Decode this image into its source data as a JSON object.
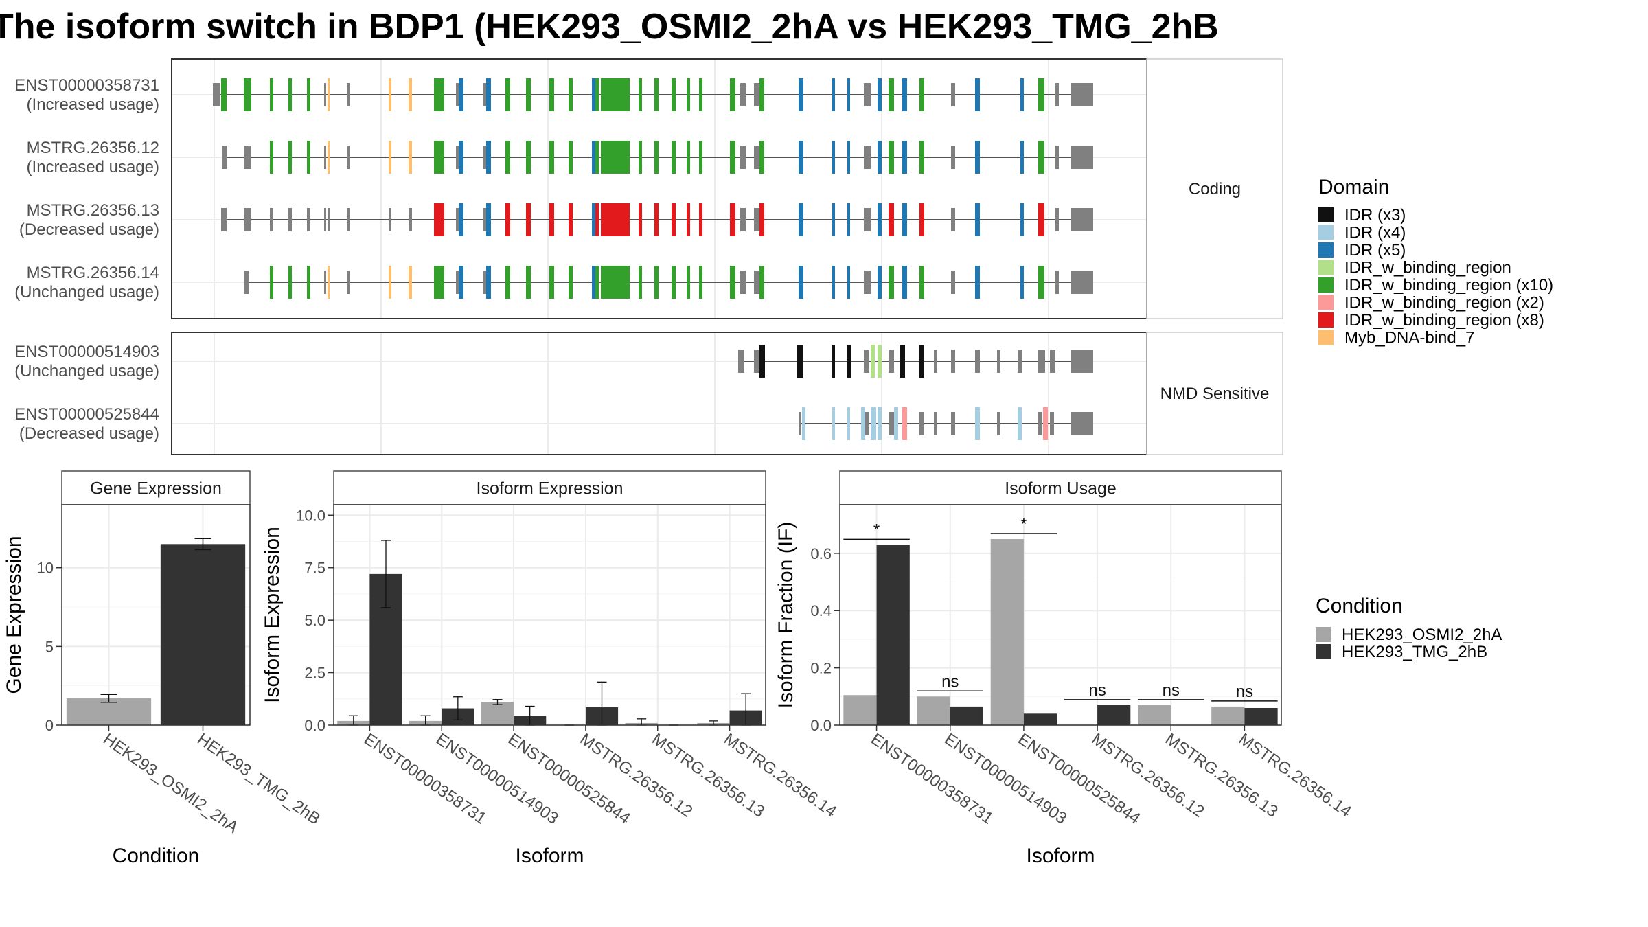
{
  "title": "The isoform switch in BDP1 (HEK293_OSMI2_2hA vs HEK293_TMG_2hB",
  "colors": {
    "cond_a": "#a6a6a6",
    "cond_b": "#333333",
    "structure": "#808080",
    "idr_x3": "#111111",
    "idr_x4": "#a6cee3",
    "idr_x5": "#1f78b4",
    "idr_binding": "#b2df8a",
    "idr_binding_x10": "#33a02c",
    "idr_binding_x2": "#fb9a99",
    "idr_binding_x8": "#e31a1c",
    "myb": "#fdbf6f",
    "grid": "#ebebeb",
    "strip": "#ffffff",
    "border": "#333333"
  },
  "structure_panels": {
    "coding_label": "Coding",
    "nmd_label": "NMD Sensitive"
  },
  "transcripts": {
    "coding": [
      {
        "id": "ENST00000358731",
        "status": "(Increased usage)"
      },
      {
        "id": "MSTRG.26356.12",
        "status": "(Increased usage)"
      },
      {
        "id": "MSTRG.26356.13",
        "status": "(Decreased usage)"
      },
      {
        "id": "MSTRG.26356.14",
        "status": "(Unchanged usage)"
      }
    ],
    "nmd": [
      {
        "id": "ENST00000514903",
        "status": "(Unchanged usage)"
      },
      {
        "id": "ENST00000525844",
        "status": "(Decreased usage)"
      }
    ]
  },
  "domain_legend": {
    "title": "Domain",
    "items": [
      {
        "label": "IDR (x3)",
        "color": "#111111"
      },
      {
        "label": "IDR (x4)",
        "color": "#a6cee3"
      },
      {
        "label": "IDR (x5)",
        "color": "#1f78b4"
      },
      {
        "label": "IDR_w_binding_region",
        "color": "#b2df8a"
      },
      {
        "label": "IDR_w_binding_region (x10)",
        "color": "#33a02c"
      },
      {
        "label": "IDR_w_binding_region (x2)",
        "color": "#fb9a99"
      },
      {
        "label": "IDR_w_binding_region (x8)",
        "color": "#e31a1c"
      },
      {
        "label": "Myb_DNA-bind_7",
        "color": "#fdbf6f"
      }
    ]
  },
  "condition_legend": {
    "title": "Condition",
    "items": [
      {
        "label": "HEK293_OSMI2_2hA",
        "color": "#a6a6a6"
      },
      {
        "label": "HEK293_TMG_2hB",
        "color": "#333333"
      }
    ]
  },
  "chart_data": [
    {
      "type": "bar",
      "title": "Gene Expression",
      "xlabel": "Condition",
      "ylabel": "Gene Expression",
      "ylim": [
        0,
        14
      ],
      "yticks": [
        0,
        5,
        10
      ],
      "categories": [
        "HEK293_OSMI2_2hA",
        "HEK293_TMG_2hB"
      ],
      "values": [
        1.7,
        11.5
      ],
      "errors": [
        0.25,
        0.35
      ],
      "colors": [
        "#a6a6a6",
        "#333333"
      ]
    },
    {
      "type": "bar",
      "title": "Isoform Expression",
      "xlabel": "Isoform",
      "ylabel": "Isoform Expression",
      "ylim": [
        0,
        10.5
      ],
      "yticks": [
        "0.0",
        "2.5",
        "5.0",
        "7.5",
        "10.0"
      ],
      "categories": [
        "ENST00000358731",
        "ENST00000514903",
        "ENST00000525844",
        "MSTRG.26356.12",
        "MSTRG.26356.13",
        "MSTRG.26356.14"
      ],
      "series": [
        {
          "name": "HEK293_OSMI2_2hA",
          "values": [
            0.2,
            0.2,
            1.1,
            0.0,
            0.1,
            0.1
          ],
          "errors": [
            0.25,
            0.25,
            0.12,
            0.0,
            0.2,
            0.1
          ]
        },
        {
          "name": "HEK293_TMG_2hB",
          "values": [
            7.2,
            0.8,
            0.45,
            0.85,
            0.0,
            0.7
          ],
          "errors": [
            1.6,
            0.55,
            0.45,
            1.2,
            0.0,
            0.8
          ]
        }
      ]
    },
    {
      "type": "bar",
      "title": "Isoform Usage",
      "xlabel": "Isoform",
      "ylabel": "Isoform Fraction (IF)",
      "ylim": [
        0,
        0.77
      ],
      "yticks": [
        "0.0",
        "0.2",
        "0.4",
        "0.6"
      ],
      "categories": [
        "ENST00000358731",
        "ENST00000514903",
        "ENST00000525844",
        "MSTRG.26356.12",
        "MSTRG.26356.13",
        "MSTRG.26356.14"
      ],
      "series": [
        {
          "name": "HEK293_OSMI2_2hA",
          "values": [
            0.105,
            0.1,
            0.65,
            0.0,
            0.07,
            0.065
          ]
        },
        {
          "name": "HEK293_TMG_2hB",
          "values": [
            0.63,
            0.065,
            0.04,
            0.07,
            0.0,
            0.06
          ]
        }
      ],
      "significance": [
        "*",
        "ns",
        "*",
        "ns",
        "ns",
        "ns"
      ]
    }
  ]
}
